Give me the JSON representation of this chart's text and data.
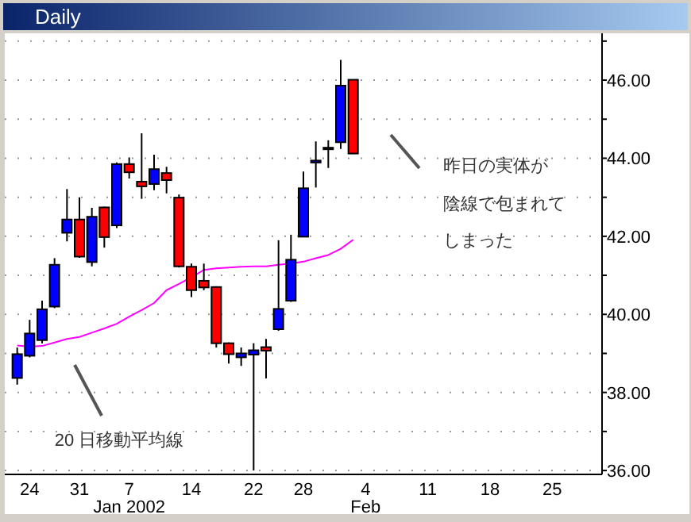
{
  "chart_data": {
    "type": "candlestick",
    "title": "Daily",
    "categories": [
      null,
      "24",
      null,
      null,
      null,
      "31",
      null,
      null,
      null,
      "7",
      null,
      null,
      null,
      null,
      "14",
      null,
      null,
      null,
      null,
      "22",
      null,
      null,
      null,
      "28",
      null,
      null,
      null,
      null,
      "4",
      null,
      null,
      null,
      null,
      "11",
      null,
      null,
      null,
      null,
      "18",
      null,
      null,
      null,
      null,
      "25",
      null,
      null,
      null
    ],
    "ohlc": [
      [
        38.37,
        39.15,
        38.2,
        38.98
      ],
      [
        38.94,
        39.86,
        38.9,
        39.51
      ],
      [
        39.34,
        40.35,
        39.26,
        40.13
      ],
      [
        40.2,
        41.44,
        40.16,
        41.27
      ],
      [
        42.09,
        43.21,
        41.87,
        42.43
      ],
      [
        42.43,
        43.0,
        41.45,
        41.48
      ],
      [
        41.34,
        42.73,
        41.23,
        42.5
      ],
      [
        42.74,
        42.76,
        41.71,
        41.98
      ],
      [
        42.28,
        43.89,
        42.21,
        43.85
      ],
      [
        43.85,
        44.02,
        43.48,
        43.64
      ],
      [
        43.4,
        44.64,
        42.96,
        43.28
      ],
      [
        43.34,
        44.09,
        43.18,
        43.72
      ],
      [
        43.62,
        43.78,
        43.1,
        43.44
      ],
      [
        42.99,
        43.07,
        41.2,
        41.23
      ],
      [
        41.22,
        41.3,
        40.44,
        40.62
      ],
      [
        40.86,
        41.3,
        40.62,
        40.69
      ],
      [
        40.7,
        40.72,
        39.15,
        39.26
      ],
      [
        39.26,
        39.28,
        38.74,
        38.98
      ],
      [
        38.9,
        39.15,
        38.68,
        39.0
      ],
      [
        38.97,
        39.26,
        36.0,
        39.08
      ],
      [
        39.16,
        39.37,
        38.36,
        39.07
      ],
      [
        39.62,
        41.9,
        39.58,
        40.14
      ],
      [
        40.35,
        42.04,
        40.32,
        41.4
      ],
      [
        41.99,
        43.66,
        41.99,
        43.23
      ],
      [
        43.89,
        44.43,
        43.25,
        43.94
      ],
      [
        44.27,
        44.46,
        43.75,
        44.27
      ],
      [
        44.41,
        46.52,
        44.24,
        45.86
      ],
      [
        46.01,
        46.01,
        44.12,
        44.12
      ],
      null,
      null,
      null,
      null,
      null,
      null,
      null,
      null,
      null,
      null,
      null,
      null,
      null,
      null,
      null,
      null,
      null,
      null,
      null
    ],
    "colors": [
      "#0000ff",
      "#0000ff",
      "#0000ff",
      "#0000ff",
      "#0000ff",
      "#ff0000",
      "#0000ff",
      "#ff0000",
      "#0000ff",
      "#ff0000",
      "#ff0000",
      "#0000ff",
      "#ff0000",
      "#ff0000",
      "#ff0000",
      "#ff0000",
      "#ff0000",
      "#ff0000",
      "#0000ff",
      "#0000ff",
      "#ff0000",
      "#0000ff",
      "#0000ff",
      "#0000ff",
      "#0000ff",
      "#0000ff",
      "#0000ff",
      "#ff0000",
      null,
      null,
      null,
      null,
      null,
      null,
      null,
      null,
      null,
      null,
      null,
      null,
      null,
      null,
      null,
      null,
      null,
      null,
      null
    ],
    "series": [
      {
        "type": "line",
        "color": "#ff00ff",
        "values": [
          39.2,
          39.17,
          39.19,
          39.28,
          39.37,
          39.42,
          39.53,
          39.64,
          39.76,
          39.94,
          40.11,
          40.29,
          40.62,
          40.78,
          40.95,
          41.14,
          41.18,
          41.2,
          41.22,
          41.23,
          41.23,
          41.27,
          41.3,
          41.35,
          41.44,
          41.52,
          41.68,
          41.91,
          null,
          null,
          null,
          null,
          null,
          null,
          null,
          null,
          null,
          null,
          null,
          null,
          null,
          null,
          null,
          null,
          null,
          null,
          null
        ]
      }
    ],
    "ylim": [
      35.9,
      47.2
    ],
    "yticks": [
      {
        "value": 36,
        "label": "36.00"
      },
      {
        "value": 37,
        "label": null
      },
      {
        "value": 38,
        "label": "38.00"
      },
      {
        "value": 39,
        "label": null
      },
      {
        "value": 40,
        "label": "40.00"
      },
      {
        "value": 41,
        "label": null
      },
      {
        "value": 42,
        "label": "42.00"
      },
      {
        "value": 43,
        "label": null
      },
      {
        "value": 44,
        "label": "44.00"
      },
      {
        "value": 45,
        "label": null
      },
      {
        "value": 46,
        "label": "46.00"
      },
      {
        "value": 47,
        "label": null
      }
    ],
    "grid": "y",
    "annotations": [
      "Jan 2002",
      "Feb",
      "20 日移動平均線",
      "昨日の実体が",
      "陰線で包まれて",
      "しまった"
    ]
  }
}
